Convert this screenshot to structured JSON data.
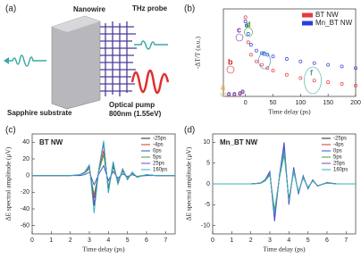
{
  "schematic": {
    "panel_label": "(a)",
    "nanowire": "Nanowire",
    "thz_probe": "THz probe",
    "substrate": "Sapphire substrate",
    "pump": "Optical pump",
    "pump_wavelength": "800nm (1.55eV)"
  },
  "chart_data": [
    {
      "type": "scatter",
      "panel_label": "(b)",
      "y_label": "-ΔT/T (a.u.)",
      "x_label": "Time delay (ps)",
      "x": [
        -30,
        -20,
        -10,
        -5,
        0,
        2,
        5,
        10,
        20,
        30,
        40,
        50,
        75,
        100,
        125,
        150,
        175,
        200
      ],
      "xlim": [
        -40,
        200
      ],
      "xticks": [
        0,
        50,
        100,
        150,
        200
      ],
      "ylim": [
        0,
        1.05
      ],
      "legend": "upper right",
      "series": [
        {
          "name": "BT NW",
          "color": "#e8383d",
          "values": [
            0.02,
            0.02,
            0.03,
            0.05,
            0.95,
            0.85,
            0.65,
            0.5,
            0.42,
            0.38,
            0.34,
            0.31,
            0.26,
            0.22,
            0.19,
            0.17,
            0.15,
            0.13
          ]
        },
        {
          "name": "Mn_BT NW",
          "color": "#2c3fd8",
          "values": [
            0.03,
            0.03,
            0.04,
            0.06,
            0.9,
            0.85,
            0.75,
            0.62,
            0.55,
            0.52,
            0.5,
            0.48,
            0.45,
            0.42,
            0.4,
            0.38,
            0.36,
            0.34
          ]
        }
      ],
      "annotations": [
        {
          "text": "a",
          "color": "#e0b050"
        },
        {
          "text": "b",
          "color": "#d62020"
        },
        {
          "text": "c",
          "color": "#7030a0"
        },
        {
          "text": "d",
          "color": "#3a9a30"
        },
        {
          "text": "e",
          "color": "#2a7fc0"
        },
        {
          "text": "f",
          "color": "#3aa8a0"
        }
      ]
    },
    {
      "type": "line",
      "panel_label": "(c)",
      "annotation": "BT NW",
      "y_label": "ΔE spectral amplitude (μV)",
      "x_label": "Time delay (ps)",
      "x": [
        0,
        0.5,
        1,
        1.5,
        2,
        2.5,
        2.75,
        3,
        3.25,
        3.5,
        3.75,
        4,
        4.25,
        4.5,
        4.75,
        5,
        5.25,
        5.5,
        6,
        6.5,
        7,
        7.5
      ],
      "xlim": [
        0,
        7.5
      ],
      "xticks": [
        0,
        1,
        2,
        3,
        4,
        5,
        6,
        7
      ],
      "ylim": [
        -70,
        50
      ],
      "yticks": [
        -60,
        -40,
        -20,
        0,
        20,
        40
      ],
      "legend": "upper right",
      "series": [
        {
          "name": "-25ps",
          "color": "#222222",
          "values": [
            0,
            0,
            0,
            0,
            0,
            1,
            4,
            12,
            -36,
            8,
            40,
            -20,
            16,
            -10,
            8,
            -5,
            4,
            -2,
            1,
            0,
            0,
            0
          ]
        },
        {
          "name": "-4ps",
          "color": "#e03030",
          "values": [
            0,
            0,
            0,
            0,
            0,
            1,
            3,
            9,
            -27,
            6,
            30,
            -15,
            12,
            -8,
            6,
            -4,
            3,
            -2,
            1,
            0,
            0,
            0
          ]
        },
        {
          "name": "0ps",
          "color": "#3050d0",
          "values": [
            0,
            0,
            0,
            0,
            0,
            0,
            1,
            4,
            -11,
            2,
            12,
            -6,
            5,
            -3,
            2,
            -1,
            1,
            -1,
            0,
            0,
            0,
            0
          ]
        },
        {
          "name": "5ps",
          "color": "#40a040",
          "values": [
            0,
            0,
            0,
            0,
            0,
            1,
            3,
            8,
            -23,
            5,
            25,
            -13,
            10,
            -6,
            5,
            -3,
            3,
            -1,
            1,
            0,
            0,
            0
          ]
        },
        {
          "name": "25ps",
          "color": "#8040c0",
          "values": [
            0,
            0,
            0,
            0,
            0,
            1,
            4,
            11,
            -34,
            8,
            38,
            -19,
            15,
            -10,
            8,
            -5,
            4,
            -2,
            1,
            0,
            0,
            0
          ]
        },
        {
          "name": "160ps",
          "color": "#30b0c0",
          "values": [
            0,
            0,
            0,
            0,
            0,
            1,
            4,
            13,
            -45,
            8,
            42,
            -21,
            17,
            -11,
            8,
            -5,
            4,
            -2,
            1,
            0,
            0,
            0
          ]
        }
      ]
    },
    {
      "type": "line",
      "panel_label": "(d)",
      "annotation": "Mn_BT NW",
      "y_label": "ΔE spectral amplitude (μV)",
      "x_label": "Time delay (ps)",
      "x": [
        0,
        0.5,
        1,
        1.5,
        2,
        2.5,
        2.75,
        3,
        3.25,
        3.5,
        3.75,
        4,
        4.25,
        4.5,
        4.75,
        5,
        5.25,
        5.5,
        6,
        6.5,
        7,
        7.5
      ],
      "xlim": [
        0,
        7.5
      ],
      "xticks": [
        0,
        1,
        2,
        3,
        4,
        5,
        6,
        7
      ],
      "ylim": [
        -12,
        12
      ],
      "yticks": [
        -10,
        -5,
        0,
        5,
        10
      ],
      "legend": "upper right",
      "series": [
        {
          "name": "-25ps",
          "color": "#222222",
          "values": [
            0,
            0,
            0,
            0,
            0,
            0.2,
            0.8,
            2.4,
            -7.2,
            1.6,
            8,
            -4,
            3.2,
            -2,
            1.6,
            -1,
            0.8,
            -0.4,
            0.2,
            0,
            0,
            0
          ]
        },
        {
          "name": "-4ps",
          "color": "#e03030",
          "values": [
            0,
            0,
            0,
            0,
            0,
            0.2,
            0.9,
            2.7,
            -8.1,
            1.8,
            9,
            -4.5,
            3.6,
            -2.3,
            1.8,
            -1.1,
            0.9,
            -0.5,
            0.3,
            0,
            0,
            0
          ]
        },
        {
          "name": "0ps",
          "color": "#3050d0",
          "values": [
            0,
            0,
            0,
            0,
            0,
            0.2,
            1,
            3,
            -9,
            2,
            10,
            -5,
            4,
            -2.5,
            2,
            -1.2,
            1,
            -0.5,
            0.3,
            0,
            0,
            0
          ]
        },
        {
          "name": "5ps",
          "color": "#40a040",
          "values": [
            0,
            0,
            0,
            0,
            0,
            0.1,
            0.7,
            2.1,
            -6.3,
            1.4,
            7,
            -3.5,
            2.8,
            -1.8,
            1.4,
            -0.8,
            0.7,
            -0.4,
            0.2,
            0,
            0,
            0
          ]
        },
        {
          "name": "25ps",
          "color": "#8040c0",
          "values": [
            0,
            0,
            0,
            0,
            0,
            0.2,
            0.9,
            2.7,
            -8.1,
            1.8,
            9,
            -4.5,
            3.6,
            -2.3,
            1.8,
            -1.1,
            0.9,
            -0.5,
            0.3,
            0,
            0,
            0
          ]
        },
        {
          "name": "160ps",
          "color": "#30b0c0",
          "values": [
            0,
            0,
            0,
            0,
            0,
            0.2,
            0.8,
            2.4,
            -7.2,
            1.6,
            8,
            -4,
            3.2,
            -2,
            1.6,
            -1,
            0.8,
            -0.4,
            0.2,
            0,
            0,
            0
          ]
        }
      ]
    }
  ]
}
